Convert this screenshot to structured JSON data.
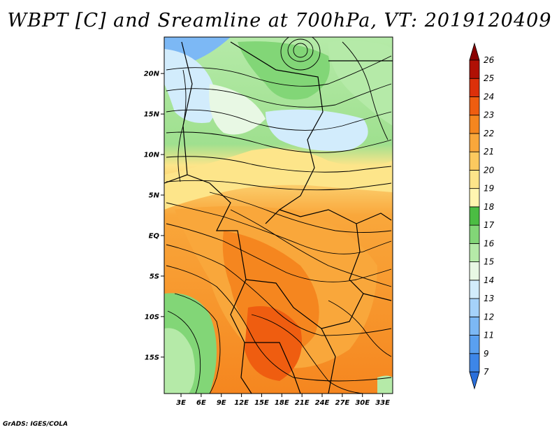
{
  "title": "WBPT [C] and Sreamline at 700hPa, VT: 2019120409",
  "footer": "GrADS: IGES/COLA",
  "map": {
    "lat_ticks": [
      "20N",
      "15N",
      "10N",
      "5N",
      "EQ",
      "5S",
      "10S",
      "15S"
    ],
    "lat_values": [
      20,
      15,
      10,
      5,
      0,
      -5,
      -10,
      -15
    ],
    "lon_ticks": [
      "3E",
      "6E",
      "9E",
      "12E",
      "15E",
      "18E",
      "21E",
      "24E",
      "27E",
      "30E",
      "33E"
    ],
    "lon_values": [
      3,
      6,
      9,
      12,
      15,
      18,
      21,
      24,
      27,
      30,
      33
    ],
    "extent": {
      "lon_min": 0.5,
      "lon_max": 34.5,
      "lat_min": -19.5,
      "lat_max": 24.5
    }
  },
  "colorbar": {
    "labels": [
      "7",
      "9",
      "11",
      "12",
      "13",
      "14",
      "15",
      "16",
      "17",
      "18",
      "19",
      "20",
      "21",
      "22",
      "23",
      "24",
      "25",
      "26"
    ],
    "colors": [
      "#2a6fdb",
      "#3d86e8",
      "#5aa0f0",
      "#7cb8f5",
      "#a5d2fa",
      "#d2ecfc",
      "#e8f8e4",
      "#b5eaa8",
      "#82d677",
      "#4bbd43",
      "#fff5b0",
      "#fde58a",
      "#fcc95f",
      "#f9a73b",
      "#f5861f",
      "#ef5d10",
      "#dc300a",
      "#b01005",
      "#8a0000"
    ]
  }
}
